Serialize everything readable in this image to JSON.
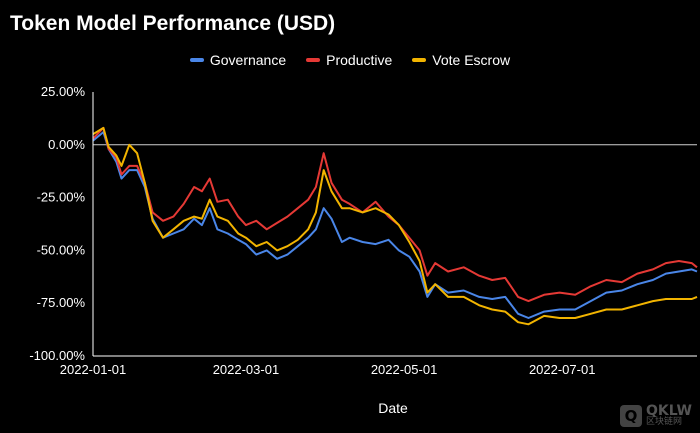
{
  "chart_data": {
    "type": "line",
    "title": "Token Model Performance (USD)",
    "xlabel": "Date",
    "ylabel": "",
    "x_range": [
      "2022-01-01",
      "2022-08-22"
    ],
    "ylim": [
      -1.0,
      0.25
    ],
    "y_ticks": [
      0.25,
      0,
      -0.25,
      -0.5,
      -0.75,
      -1.0
    ],
    "y_tick_labels": [
      "25.00%",
      "0.00%",
      "-25.00%",
      "-50.00%",
      "-75.00%",
      "-100.00%"
    ],
    "x_ticks": [
      "2022-01-01",
      "2022-03-01",
      "2022-05-01",
      "2022-07-01"
    ],
    "grid": "zero-line only",
    "legend_position": "top-center",
    "series": [
      {
        "name": "Governance",
        "color": "#4a86e8",
        "points": [
          [
            "2022-01-01",
            0.02
          ],
          [
            "2022-01-05",
            0.06
          ],
          [
            "2022-01-07",
            -0.02
          ],
          [
            "2022-01-10",
            -0.08
          ],
          [
            "2022-01-12",
            -0.16
          ],
          [
            "2022-01-15",
            -0.12
          ],
          [
            "2022-01-18",
            -0.12
          ],
          [
            "2022-01-21",
            -0.2
          ],
          [
            "2022-01-24",
            -0.35
          ],
          [
            "2022-01-28",
            -0.44
          ],
          [
            "2022-02-01",
            -0.42
          ],
          [
            "2022-02-05",
            -0.4
          ],
          [
            "2022-02-09",
            -0.35
          ],
          [
            "2022-02-12",
            -0.38
          ],
          [
            "2022-02-15",
            -0.3
          ],
          [
            "2022-02-18",
            -0.4
          ],
          [
            "2022-02-22",
            -0.42
          ],
          [
            "2022-02-26",
            -0.45
          ],
          [
            "2022-03-01",
            -0.47
          ],
          [
            "2022-03-05",
            -0.52
          ],
          [
            "2022-03-09",
            -0.5
          ],
          [
            "2022-03-13",
            -0.54
          ],
          [
            "2022-03-17",
            -0.52
          ],
          [
            "2022-03-21",
            -0.48
          ],
          [
            "2022-03-25",
            -0.44
          ],
          [
            "2022-03-28",
            -0.4
          ],
          [
            "2022-03-31",
            -0.3
          ],
          [
            "2022-04-03",
            -0.35
          ],
          [
            "2022-04-07",
            -0.46
          ],
          [
            "2022-04-10",
            -0.44
          ],
          [
            "2022-04-15",
            -0.46
          ],
          [
            "2022-04-20",
            -0.47
          ],
          [
            "2022-04-25",
            -0.45
          ],
          [
            "2022-04-29",
            -0.5
          ],
          [
            "2022-05-03",
            -0.53
          ],
          [
            "2022-05-07",
            -0.6
          ],
          [
            "2022-05-10",
            -0.72
          ],
          [
            "2022-05-13",
            -0.66
          ],
          [
            "2022-05-18",
            -0.7
          ],
          [
            "2022-05-24",
            -0.69
          ],
          [
            "2022-05-30",
            -0.72
          ],
          [
            "2022-06-04",
            -0.73
          ],
          [
            "2022-06-09",
            -0.72
          ],
          [
            "2022-06-14",
            -0.8
          ],
          [
            "2022-06-18",
            -0.82
          ],
          [
            "2022-06-24",
            -0.79
          ],
          [
            "2022-06-30",
            -0.78
          ],
          [
            "2022-07-06",
            -0.78
          ],
          [
            "2022-07-12",
            -0.74
          ],
          [
            "2022-07-18",
            -0.7
          ],
          [
            "2022-07-24",
            -0.69
          ],
          [
            "2022-07-30",
            -0.66
          ],
          [
            "2022-08-05",
            -0.64
          ],
          [
            "2022-08-10",
            -0.61
          ],
          [
            "2022-08-15",
            -0.6
          ],
          [
            "2022-08-20",
            -0.59
          ],
          [
            "2022-08-22",
            -0.6
          ]
        ]
      },
      {
        "name": "Productive",
        "color": "#e53935",
        "points": [
          [
            "2022-01-01",
            0.03
          ],
          [
            "2022-01-05",
            0.08
          ],
          [
            "2022-01-07",
            -0.02
          ],
          [
            "2022-01-10",
            -0.06
          ],
          [
            "2022-01-12",
            -0.14
          ],
          [
            "2022-01-15",
            -0.1
          ],
          [
            "2022-01-18",
            -0.1
          ],
          [
            "2022-01-21",
            -0.18
          ],
          [
            "2022-01-24",
            -0.32
          ],
          [
            "2022-01-28",
            -0.36
          ],
          [
            "2022-02-01",
            -0.34
          ],
          [
            "2022-02-05",
            -0.28
          ],
          [
            "2022-02-09",
            -0.2
          ],
          [
            "2022-02-12",
            -0.22
          ],
          [
            "2022-02-15",
            -0.16
          ],
          [
            "2022-02-18",
            -0.27
          ],
          [
            "2022-02-22",
            -0.26
          ],
          [
            "2022-02-26",
            -0.34
          ],
          [
            "2022-03-01",
            -0.38
          ],
          [
            "2022-03-05",
            -0.36
          ],
          [
            "2022-03-09",
            -0.4
          ],
          [
            "2022-03-13",
            -0.37
          ],
          [
            "2022-03-17",
            -0.34
          ],
          [
            "2022-03-21",
            -0.3
          ],
          [
            "2022-03-25",
            -0.26
          ],
          [
            "2022-03-28",
            -0.2
          ],
          [
            "2022-03-31",
            -0.04
          ],
          [
            "2022-04-03",
            -0.18
          ],
          [
            "2022-04-07",
            -0.26
          ],
          [
            "2022-04-10",
            -0.28
          ],
          [
            "2022-04-15",
            -0.32
          ],
          [
            "2022-04-20",
            -0.27
          ],
          [
            "2022-04-25",
            -0.34
          ],
          [
            "2022-04-29",
            -0.38
          ],
          [
            "2022-05-03",
            -0.44
          ],
          [
            "2022-05-07",
            -0.5
          ],
          [
            "2022-05-10",
            -0.62
          ],
          [
            "2022-05-13",
            -0.56
          ],
          [
            "2022-05-18",
            -0.6
          ],
          [
            "2022-05-24",
            -0.58
          ],
          [
            "2022-05-30",
            -0.62
          ],
          [
            "2022-06-04",
            -0.64
          ],
          [
            "2022-06-09",
            -0.63
          ],
          [
            "2022-06-14",
            -0.72
          ],
          [
            "2022-06-18",
            -0.74
          ],
          [
            "2022-06-24",
            -0.71
          ],
          [
            "2022-06-30",
            -0.7
          ],
          [
            "2022-07-06",
            -0.71
          ],
          [
            "2022-07-12",
            -0.67
          ],
          [
            "2022-07-18",
            -0.64
          ],
          [
            "2022-07-24",
            -0.65
          ],
          [
            "2022-07-30",
            -0.61
          ],
          [
            "2022-08-05",
            -0.59
          ],
          [
            "2022-08-10",
            -0.56
          ],
          [
            "2022-08-15",
            -0.55
          ],
          [
            "2022-08-20",
            -0.56
          ],
          [
            "2022-08-22",
            -0.58
          ]
        ]
      },
      {
        "name": "Vote Escrow",
        "color": "#f2b400",
        "points": [
          [
            "2022-01-01",
            0.05
          ],
          [
            "2022-01-05",
            0.08
          ],
          [
            "2022-01-07",
            -0.01
          ],
          [
            "2022-01-10",
            -0.05
          ],
          [
            "2022-01-12",
            -0.1
          ],
          [
            "2022-01-15",
            0.0
          ],
          [
            "2022-01-18",
            -0.04
          ],
          [
            "2022-01-21",
            -0.18
          ],
          [
            "2022-01-24",
            -0.36
          ],
          [
            "2022-01-28",
            -0.44
          ],
          [
            "2022-02-01",
            -0.4
          ],
          [
            "2022-02-05",
            -0.36
          ],
          [
            "2022-02-09",
            -0.34
          ],
          [
            "2022-02-12",
            -0.35
          ],
          [
            "2022-02-15",
            -0.26
          ],
          [
            "2022-02-18",
            -0.34
          ],
          [
            "2022-02-22",
            -0.36
          ],
          [
            "2022-02-26",
            -0.42
          ],
          [
            "2022-03-01",
            -0.44
          ],
          [
            "2022-03-05",
            -0.48
          ],
          [
            "2022-03-09",
            -0.46
          ],
          [
            "2022-03-13",
            -0.5
          ],
          [
            "2022-03-17",
            -0.48
          ],
          [
            "2022-03-21",
            -0.45
          ],
          [
            "2022-03-25",
            -0.4
          ],
          [
            "2022-03-28",
            -0.32
          ],
          [
            "2022-03-31",
            -0.12
          ],
          [
            "2022-04-03",
            -0.22
          ],
          [
            "2022-04-07",
            -0.3
          ],
          [
            "2022-04-10",
            -0.3
          ],
          [
            "2022-04-15",
            -0.32
          ],
          [
            "2022-04-20",
            -0.3
          ],
          [
            "2022-04-25",
            -0.33
          ],
          [
            "2022-04-29",
            -0.38
          ],
          [
            "2022-05-03",
            -0.46
          ],
          [
            "2022-05-07",
            -0.55
          ],
          [
            "2022-05-10",
            -0.7
          ],
          [
            "2022-05-13",
            -0.66
          ],
          [
            "2022-05-18",
            -0.72
          ],
          [
            "2022-05-24",
            -0.72
          ],
          [
            "2022-05-30",
            -0.76
          ],
          [
            "2022-06-04",
            -0.78
          ],
          [
            "2022-06-09",
            -0.79
          ],
          [
            "2022-06-14",
            -0.84
          ],
          [
            "2022-06-18",
            -0.85
          ],
          [
            "2022-06-24",
            -0.81
          ],
          [
            "2022-06-30",
            -0.82
          ],
          [
            "2022-07-06",
            -0.82
          ],
          [
            "2022-07-12",
            -0.8
          ],
          [
            "2022-07-18",
            -0.78
          ],
          [
            "2022-07-24",
            -0.78
          ],
          [
            "2022-07-30",
            -0.76
          ],
          [
            "2022-08-05",
            -0.74
          ],
          [
            "2022-08-10",
            -0.73
          ],
          [
            "2022-08-15",
            -0.73
          ],
          [
            "2022-08-20",
            -0.73
          ],
          [
            "2022-08-22",
            -0.72
          ]
        ]
      }
    ]
  },
  "watermark": {
    "logo_letter": "Q",
    "main_text": "QKLW",
    "sub_text": "区块链网"
  }
}
